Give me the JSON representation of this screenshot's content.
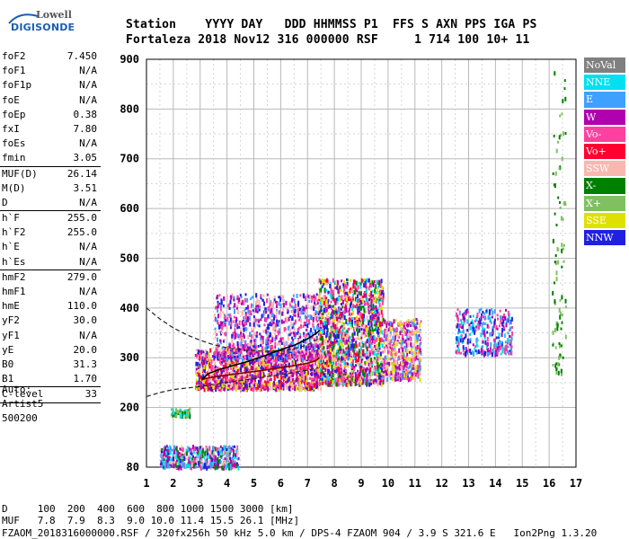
{
  "logo": {
    "top": "Lowell",
    "main": "DIGISONDE"
  },
  "header": {
    "row1": "Station    YYYY DAY   DDD HHMMSS P1  FFS S AXN PPS IGA PS",
    "row2": "Fortaleza 2018 Nov12 316 000000 RSF     1 714 100 10+ 11"
  },
  "params": {
    "groups": [
      [
        {
          "label": "foF2",
          "value": "7.450"
        },
        {
          "label": "foF1",
          "value": "N/A"
        },
        {
          "label": "foF1p",
          "value": "N/A"
        },
        {
          "label": "foE",
          "value": "N/A"
        },
        {
          "label": "foEp",
          "value": "0.38"
        },
        {
          "label": "fxI",
          "value": "7.80"
        },
        {
          "label": "foEs",
          "value": "N/A"
        },
        {
          "label": "fmin",
          "value": "3.05"
        }
      ],
      [
        {
          "label": "MUF(D)",
          "value": "26.14"
        },
        {
          "label": "M(D)",
          "value": "3.51"
        },
        {
          "label": "D",
          "value": "N/A"
        }
      ],
      [
        {
          "label": "h`F",
          "value": "255.0"
        },
        {
          "label": "h`F2",
          "value": "255.0"
        },
        {
          "label": "h`E",
          "value": "N/A"
        },
        {
          "label": "h`Es",
          "value": "N/A"
        }
      ],
      [
        {
          "label": "hmF2",
          "value": "279.0"
        },
        {
          "label": "hmF1",
          "value": "N/A"
        },
        {
          "label": "hmE",
          "value": "110.0"
        },
        {
          "label": "yF2",
          "value": "30.0"
        },
        {
          "label": "yF1",
          "value": "N/A"
        },
        {
          "label": "yE",
          "value": "20.0"
        },
        {
          "label": "B0",
          "value": "31.3"
        },
        {
          "label": "B1",
          "value": "1.70"
        }
      ],
      [
        {
          "label": "C-level",
          "value": "33"
        }
      ]
    ],
    "auto": [
      "Auto:",
      "Artist5",
      "500200"
    ]
  },
  "legend": [
    {
      "label": "NoVal",
      "color": "#808080"
    },
    {
      "label": "NNE",
      "color": "#00e0f0"
    },
    {
      "label": "E",
      "color": "#40a0ff"
    },
    {
      "label": "W",
      "color": "#b000b0"
    },
    {
      "label": "Vo-",
      "color": "#ff40a0"
    },
    {
      "label": "Vo+",
      "color": "#ff0030"
    },
    {
      "label": "SSW",
      "color": "#f8b8b0"
    },
    {
      "label": "X-",
      "color": "#008000"
    },
    {
      "label": "X+",
      "color": "#80c060"
    },
    {
      "label": "SSE",
      "color": "#e0e000"
    },
    {
      "label": "NNW",
      "color": "#2020e0"
    }
  ],
  "footer": {
    "row1": "D     100  200  400  600  800 1000 1500 3000 [km]",
    "row2": "MUF   7.8  7.9  8.3  9.0 10.0 11.4 15.5 26.1 [MHz]",
    "row3": "FZAOM_2018316000000.RSF / 320fx256h 50 kHz 5.0 km / DPS-4 FZAOM 904 / 3.9 S 321.6 E   Ion2Png 1.3.20"
  },
  "chart_data": {
    "type": "scatter",
    "title": "",
    "xlabel": "",
    "ylabel": "",
    "xlim": [
      1,
      17
    ],
    "ylim": [
      80,
      900
    ],
    "xticks": [
      1,
      2,
      3,
      4,
      5,
      6,
      7,
      8,
      9,
      10,
      11,
      12,
      13,
      14,
      15,
      16,
      17
    ],
    "yticks": [
      80,
      200,
      300,
      400,
      500,
      600,
      700,
      800,
      900
    ],
    "grid": true,
    "legend_position": "right",
    "x_profile": [
      3.05,
      3.2,
      3.6,
      4.0,
      4.5,
      5.0,
      5.5,
      6.0,
      6.5,
      7.0,
      7.3,
      7.45
    ],
    "y_profile": [
      255,
      258,
      262,
      265,
      269,
      272,
      276,
      280,
      284,
      289,
      294,
      300
    ],
    "x_trace": [
      3.05,
      3.3,
      3.7,
      4.2,
      4.8,
      5.4,
      6.0,
      6.5,
      7.0,
      7.35,
      7.45
    ],
    "y_trace": [
      255,
      268,
      276,
      284,
      293,
      304,
      316,
      325,
      338,
      350,
      355
    ],
    "x_model_upper": [
      1.0,
      1.5,
      2.0,
      2.5,
      3.0,
      3.5,
      4.0,
      4.5,
      5.0,
      5.5,
      6.0,
      6.5,
      7.0,
      7.4
    ],
    "y_model_upper": [
      400,
      378,
      360,
      346,
      335,
      326,
      320,
      316,
      314,
      313,
      314,
      318,
      326,
      338
    ],
    "x_model_lower": [
      1.0,
      1.5,
      2.0,
      3.0,
      4.0,
      5.0,
      6.0,
      7.0,
      7.4
    ],
    "y_model_lower": [
      222,
      230,
      236,
      242,
      250,
      258,
      266,
      275,
      280
    ],
    "clusters": [
      {
        "x": [
          2.8,
          7.5
        ],
        "y": [
          240,
          320
        ],
        "n": 1400,
        "colors": [
          "#e0e000",
          "#ff0030",
          "#ff40a0",
          "#b000b0",
          "#f8b8b0",
          "#2020e0"
        ]
      },
      {
        "x": [
          3.5,
          7.5
        ],
        "y": [
          300,
          430
        ],
        "n": 900,
        "colors": [
          "#ff40a0",
          "#b000b0",
          "#f8b8b0",
          "#2020e0",
          "#40a0ff"
        ]
      },
      {
        "x": [
          7.4,
          9.8
        ],
        "y": [
          250,
          460
        ],
        "n": 1500,
        "colors": [
          "#e0e000",
          "#ff0030",
          "#ff40a0",
          "#b000b0",
          "#f8b8b0",
          "#2020e0",
          "#00e0f0",
          "#008000"
        ]
      },
      {
        "x": [
          9.8,
          11.2
        ],
        "y": [
          260,
          380
        ],
        "n": 500,
        "colors": [
          "#e0e000",
          "#f8b8b0",
          "#ff40a0",
          "#40a0ff",
          "#b000b0"
        ]
      },
      {
        "x": [
          12.5,
          14.6
        ],
        "y": [
          310,
          400
        ],
        "n": 320,
        "colors": [
          "#00e0f0",
          "#40a0ff",
          "#2020e0",
          "#b000b0",
          "#ff40a0"
        ]
      },
      {
        "x": [
          1.9,
          2.6
        ],
        "y": [
          185,
          200
        ],
        "n": 60,
        "colors": [
          "#008000",
          "#80c060",
          "#00e0f0"
        ]
      },
      {
        "x": [
          1.5,
          4.4
        ],
        "y": [
          82,
          125
        ],
        "n": 500,
        "colors": [
          "#00e0f0",
          "#40a0ff",
          "#2020e0",
          "#b000b0",
          "#008000",
          "#ff40a0",
          "#f8b8b0"
        ]
      },
      {
        "x": [
          16.1,
          16.6
        ],
        "y": [
          270,
          890
        ],
        "n": 90,
        "colors": [
          "#008000",
          "#80c060"
        ]
      }
    ]
  }
}
